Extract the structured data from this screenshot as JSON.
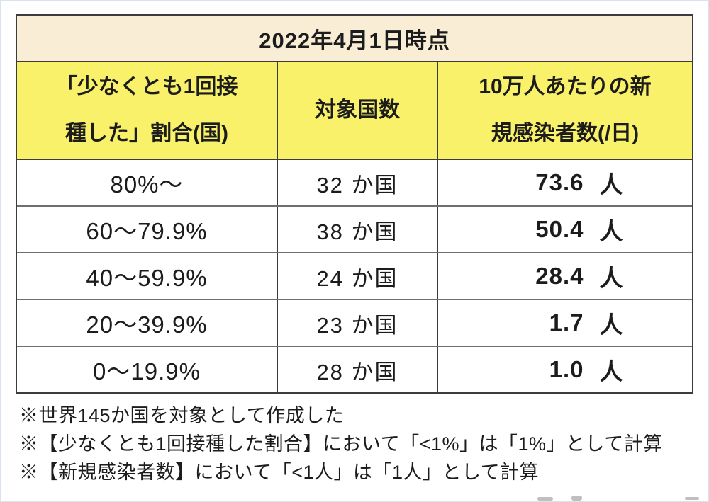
{
  "chart_data": {
    "type": "table",
    "title": "2022年4月1日時点",
    "columns": [
      "「少なくとも1回接\n種した」割合(国)",
      "対象国数",
      "10万人あたりの新\n規感染者数(/日)"
    ],
    "rows": [
      {
        "rate": "80%〜",
        "countries": "32 か国",
        "new_cases_per_100k": "73.6",
        "unit": "人"
      },
      {
        "rate": "60〜79.9%",
        "countries": "38 か国",
        "new_cases_per_100k": "50.4",
        "unit": "人"
      },
      {
        "rate": "40〜59.9%",
        "countries": "24 か国",
        "new_cases_per_100k": "28.4",
        "unit": "人"
      },
      {
        "rate": "20〜39.9%",
        "countries": "23 か国",
        "new_cases_per_100k": "1.7",
        "unit": "人"
      },
      {
        "rate": "0〜19.9%",
        "countries": "28 か国",
        "new_cases_per_100k": "1.0",
        "unit": "人"
      }
    ],
    "notes": [
      "※世界145か国を対象として作成した",
      "※【少なくとも1回接種した割合】において「<1%」は「1%」として計算",
      "※【新規感染者数】において「<1人」は「1人」として計算"
    ]
  },
  "colors": {
    "title_band": "#FAEDD5",
    "header_band": "#F8F169",
    "row_background": "#FFFFFF",
    "border_dark": "#3B3B3B",
    "border_light": "#6F6F6F",
    "text": "#1C1C1C",
    "edge_tint": "#D9E3F0"
  }
}
